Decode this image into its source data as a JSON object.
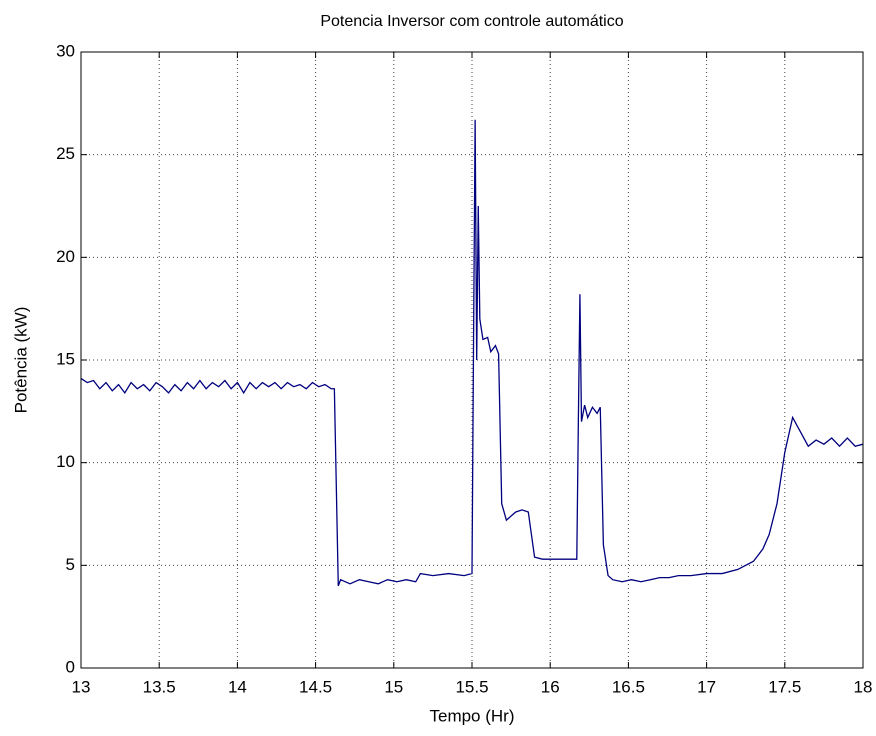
{
  "chart_data": {
    "type": "line",
    "title": "Potencia Inversor com controle automático",
    "xlabel": "Tempo (Hr)",
    "ylabel": "Potência (kW)",
    "xlim": [
      13,
      18
    ],
    "ylim": [
      0,
      30
    ],
    "xticks": [
      13,
      13.5,
      14,
      14.5,
      15,
      15.5,
      16,
      16.5,
      17,
      17.5,
      18
    ],
    "yticks": [
      0,
      5,
      10,
      15,
      20,
      25,
      30
    ],
    "grid": true,
    "series": [
      {
        "color": "#00007f",
        "x": [
          13.0,
          13.04,
          13.08,
          13.12,
          13.16,
          13.2,
          13.24,
          13.28,
          13.32,
          13.36,
          13.4,
          13.44,
          13.48,
          13.52,
          13.56,
          13.6,
          13.64,
          13.68,
          13.72,
          13.76,
          13.8,
          13.84,
          13.88,
          13.92,
          13.96,
          14.0,
          14.04,
          14.08,
          14.12,
          14.16,
          14.2,
          14.24,
          14.28,
          14.32,
          14.36,
          14.4,
          14.44,
          14.48,
          14.52,
          14.56,
          14.6,
          14.62,
          14.645,
          14.66,
          14.72,
          14.78,
          14.84,
          14.9,
          14.96,
          15.02,
          15.08,
          15.14,
          15.17,
          15.25,
          15.35,
          15.45,
          15.5,
          15.51,
          15.52,
          15.53,
          15.54,
          15.55,
          15.57,
          15.6,
          15.62,
          15.65,
          15.67,
          15.69,
          15.72,
          15.75,
          15.78,
          15.82,
          15.86,
          15.88,
          15.9,
          15.95,
          16.05,
          16.17,
          16.18,
          16.19,
          16.2,
          16.22,
          16.24,
          16.27,
          16.3,
          16.32,
          16.34,
          16.37,
          16.4,
          16.46,
          16.52,
          16.58,
          16.64,
          16.7,
          16.76,
          16.82,
          16.9,
          17.0,
          17.1,
          17.2,
          17.3,
          17.36,
          17.4,
          17.45,
          17.5,
          17.55,
          17.6,
          17.65,
          17.7,
          17.75,
          17.8,
          17.85,
          17.9,
          17.95,
          18.0
        ],
        "values": [
          14.1,
          13.9,
          14.0,
          13.6,
          13.9,
          13.5,
          13.8,
          13.4,
          13.9,
          13.6,
          13.8,
          13.5,
          13.9,
          13.7,
          13.4,
          13.8,
          13.5,
          13.9,
          13.6,
          14.0,
          13.6,
          13.9,
          13.7,
          14.0,
          13.6,
          13.9,
          13.4,
          13.9,
          13.6,
          13.9,
          13.7,
          13.9,
          13.6,
          13.9,
          13.7,
          13.8,
          13.6,
          13.9,
          13.7,
          13.8,
          13.6,
          13.6,
          4.0,
          4.3,
          4.1,
          4.3,
          4.2,
          4.1,
          4.3,
          4.2,
          4.3,
          4.2,
          4.6,
          4.5,
          4.6,
          4.5,
          4.6,
          16.0,
          26.7,
          15.0,
          22.5,
          17.0,
          16.0,
          16.1,
          15.4,
          15.7,
          15.3,
          8.0,
          7.2,
          7.4,
          7.6,
          7.7,
          7.6,
          6.5,
          5.4,
          5.3,
          5.3,
          5.3,
          12.0,
          18.2,
          12.0,
          12.8,
          12.2,
          12.7,
          12.4,
          12.7,
          6.0,
          4.5,
          4.3,
          4.2,
          4.3,
          4.2,
          4.3,
          4.4,
          4.4,
          4.5,
          4.5,
          4.6,
          4.6,
          4.8,
          5.2,
          5.8,
          6.5,
          8.0,
          10.5,
          12.2,
          11.5,
          10.8,
          11.1,
          10.9,
          11.2,
          10.8,
          11.2,
          10.8,
          10.9
        ]
      }
    ]
  }
}
